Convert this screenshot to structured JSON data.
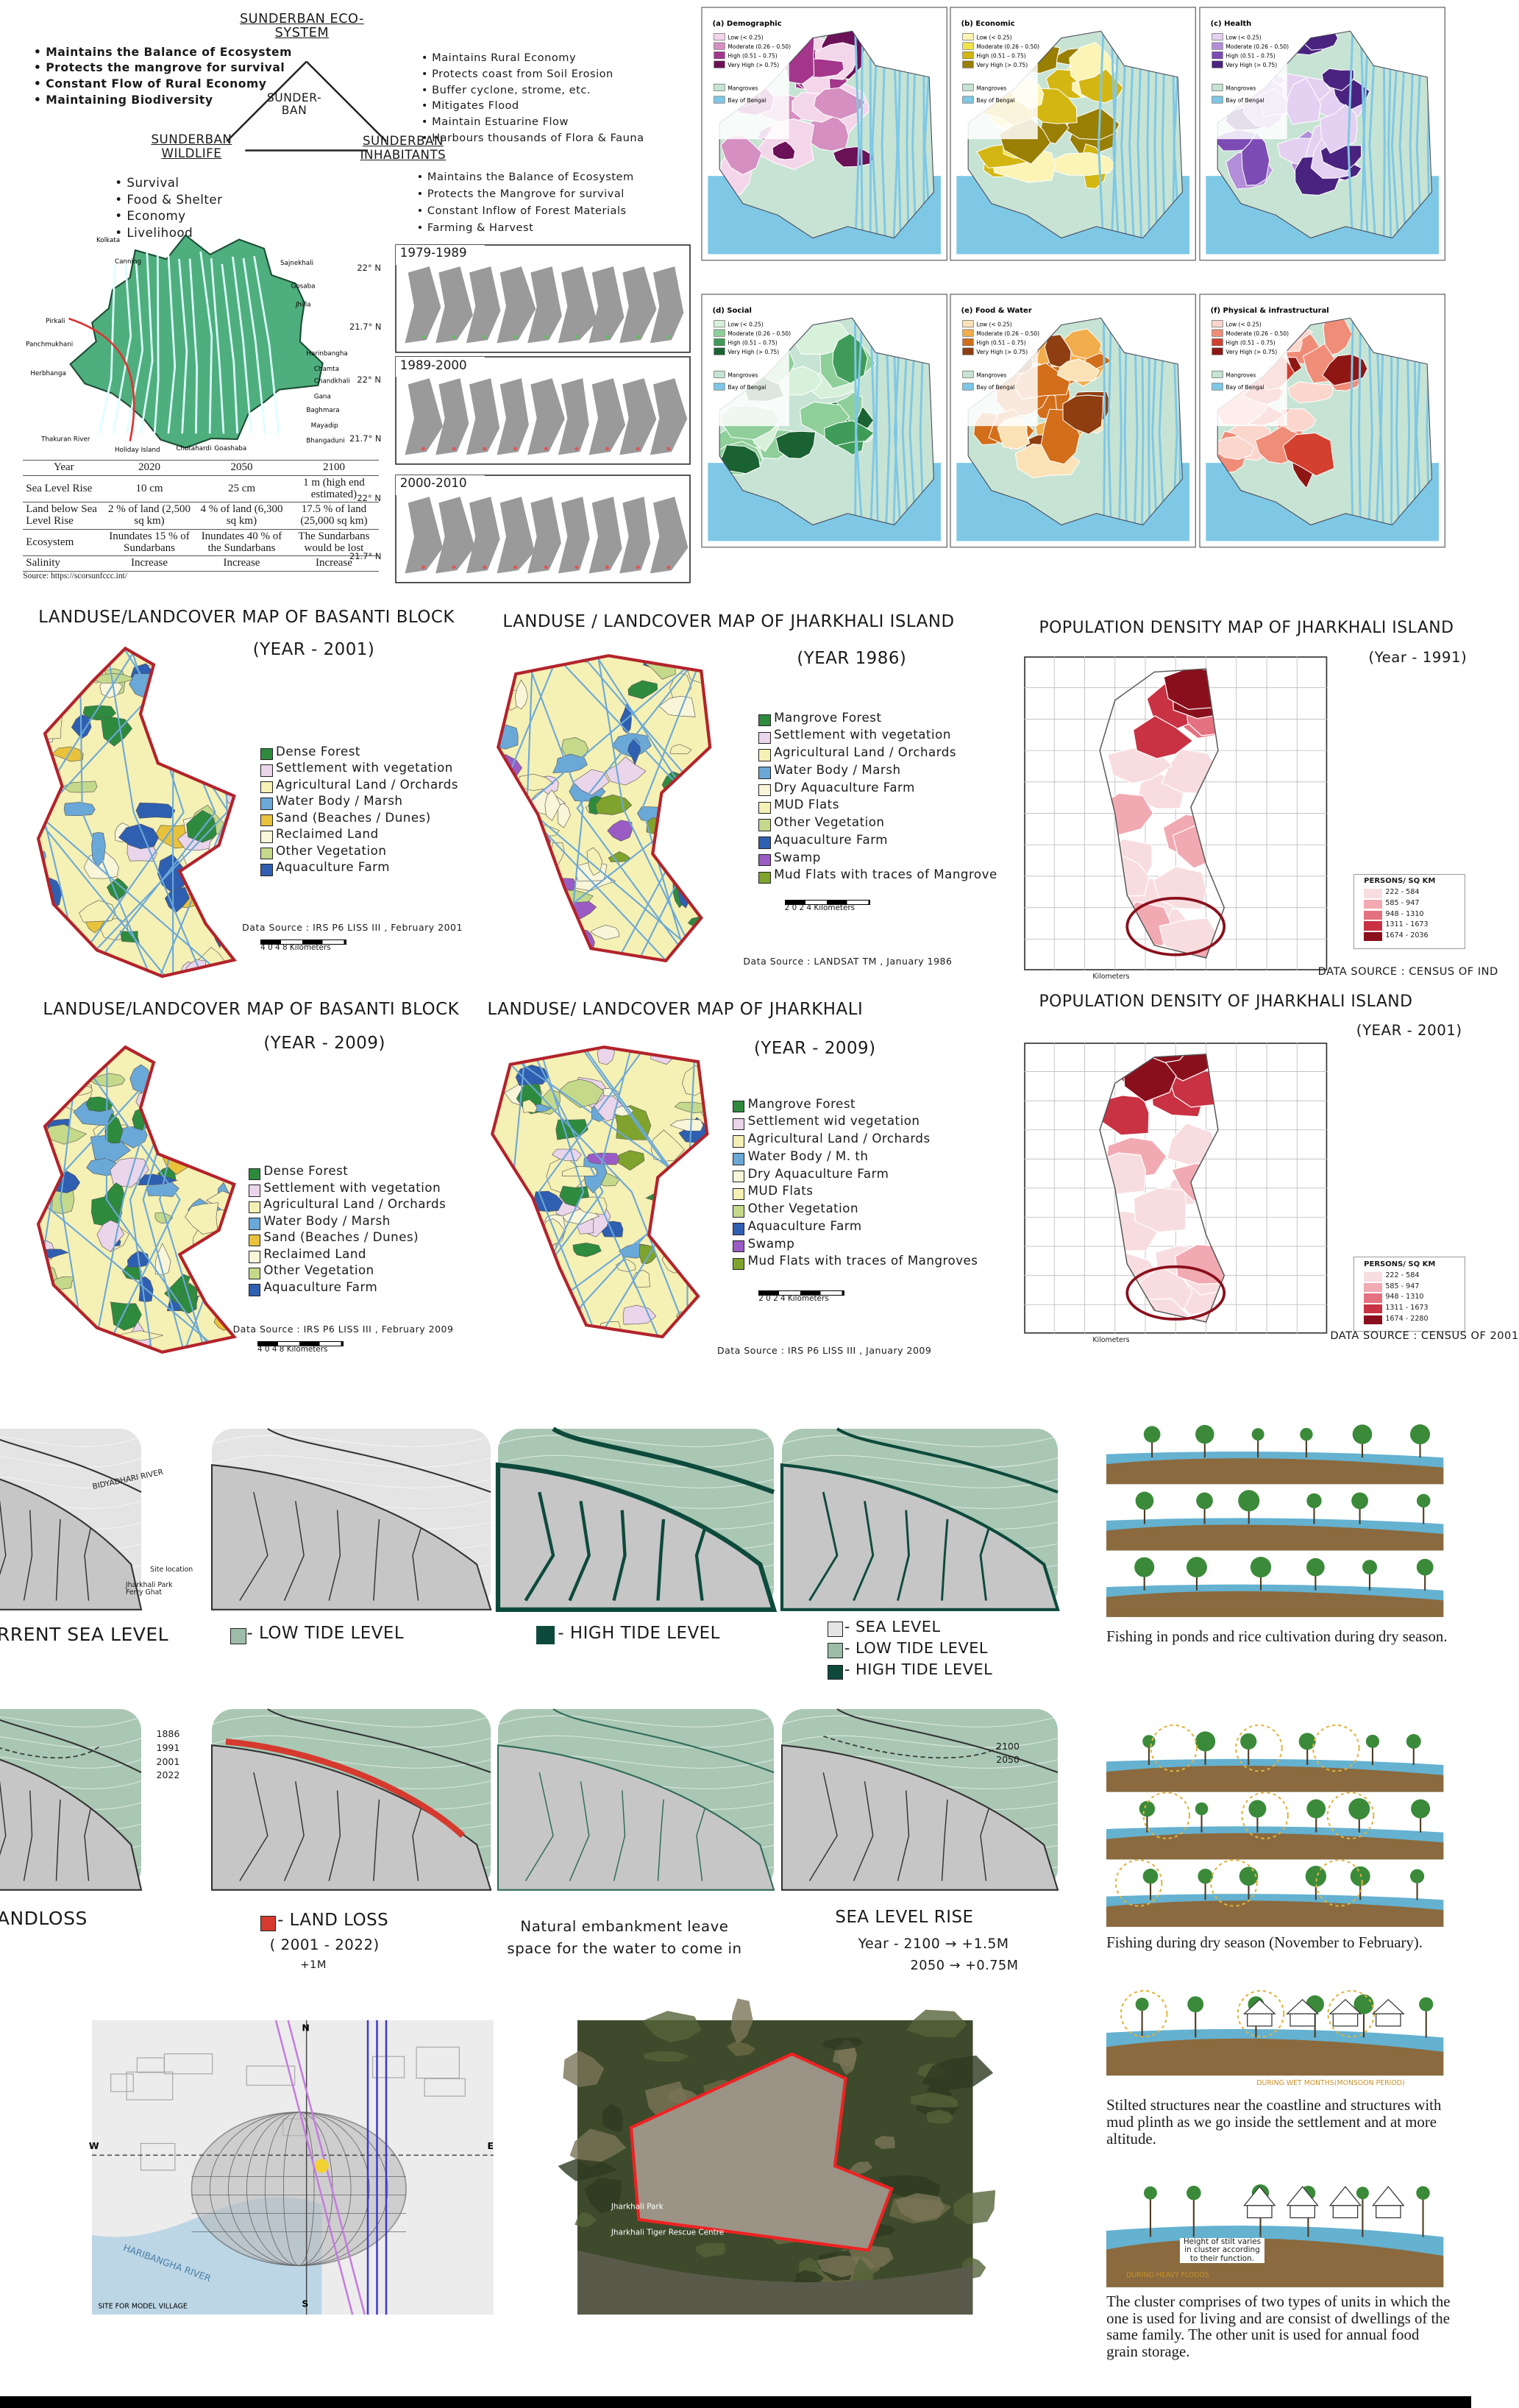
{
  "ecosystem": {
    "title": "SUNDERBAN ECO-SYSTEM",
    "center": "SUNDER-BAN",
    "left_title": "SUNDERBAN WILDLIFE",
    "right_title": "SUNDERBAN INHABITANTS",
    "top_left": [
      "• Maintains the Balance of Ecosystem",
      "• Protects the mangrove for survival",
      "• Constant Flow of Rural Economy",
      "• Maintaining Biodiversity"
    ],
    "top_right": [
      "• Maintains Rural Economy",
      "• Protects coast from Soil Erosion",
      "• Buffer cyclone, strome, etc.",
      "• Mitigates Flood",
      "• Maintain Estuarine Flow",
      "• Harbours thousands of Flora & Fauna"
    ],
    "wildlife": [
      "• Survival",
      "• Food & Shelter",
      "• Economy",
      "• Livelihood"
    ],
    "inhabitants": [
      "• Maintains the Balance of Ecosystem",
      "• Protects the Mangrove for survival",
      "• Constant Inflow of Forest Materials",
      "• Farming & Harvest"
    ]
  },
  "location_map": {
    "labels": [
      "Kolkata",
      "Canning",
      "Sajnekhali",
      "Gosaba",
      "Jhilla",
      "Pirkali",
      "Panchmukhani",
      "Herbhanga",
      "Harinbangha",
      "Chamta",
      "Chandkhali",
      "Gana",
      "Baghmara",
      "Mayadip",
      "Bhangaduni",
      "Thakuran River",
      "Holiday Island",
      "Chotahardi",
      "Goashaba"
    ]
  },
  "sea_level_table": {
    "header": [
      "Year",
      "2020",
      "2050",
      "2100"
    ],
    "rows": [
      [
        "Sea Level Rise",
        "10 cm",
        "25 cm",
        "1 m (high end estimated)"
      ],
      [
        "Land below Sea Level Rise",
        "2 % of land (2,500 sq km)",
        "4 % of land (6,300 sq km)",
        "17.5 % of land (25,000 sq km)"
      ],
      [
        "Ecosystem",
        "Inundates 15 % of Sundarbans",
        "Inundates 40 % of the Sundarbans",
        "The Sundarbans would be lost"
      ],
      [
        "Salinity",
        "Increase",
        "Increase",
        "Increase"
      ]
    ],
    "source": "Source: https://scorsunfccc.int/"
  },
  "shoreline": {
    "periods": [
      "1979-1989",
      "1989-2000",
      "2000-2010"
    ],
    "lat_labels": [
      "22° N",
      "21.7° N"
    ]
  },
  "vulnerability": {
    "panels": [
      "(a) Demographic",
      "(b) Economic",
      "(c) Health",
      "(d) Social",
      "(e) Food & Water",
      "(f) Physical & infrastructural"
    ],
    "legend": [
      "Low (< 0.25)",
      "Moderate (0.26 – 0.50)",
      "High (0.51 – 0.75)",
      "Very High (> 0.75)"
    ],
    "mangroves": "Mangroves",
    "bay": "Bay of Bengal"
  },
  "landuse_maps": [
    {
      "title": "LANDUSE/LANDCOVER MAP OF BASANTI BLOCK",
      "year": "(YEAR - 2001)",
      "legend": [
        "Dense Forest",
        "Settlement with vegetation",
        "Agricultural Land / Orchards",
        "Water Body / Marsh",
        "Sand (Beaches / Dunes)",
        "Reclaimed Land",
        "Other Vegetation",
        "Aquaculture Farm"
      ],
      "source": "Data Source : IRS P6 LISS III , February 2001",
      "scale": "4    0    4    8  Kilometers"
    },
    {
      "title": "LANDUSE / LANDCOVER MAP OF JHARKHALI ISLAND",
      "year": "(YEAR 1986)",
      "legend": [
        "Mangrove Forest",
        "Settlement with vegetation",
        "Agricultural Land / Orchards",
        "Water Body / Marsh",
        "Dry Aquaculture Farm",
        "MUD Flats",
        "Other Vegetation",
        "Aquaculture Farm",
        "Swamp",
        "Mud Flats with traces of Mangrove"
      ],
      "source": "Data Source : LANDSAT TM , January 1986",
      "scale": "2    0    2    4  Kilometers"
    },
    {
      "title": "LANDUSE/LANDCOVER MAP OF BASANTI BLOCK",
      "year": "(YEAR - 2009)",
      "legend": [
        "Dense Forest",
        "Settlement with vegetation",
        "Agricultural Land / Orchards",
        "Water Body / Marsh",
        "Sand (Beaches / Dunes)",
        "Reclaimed Land",
        "Other Vegetation",
        "Aquaculture Farm"
      ],
      "source": "Data Source : IRS P6 LISS III , February 2009",
      "scale": "4    0    4    8  Kilometers"
    },
    {
      "title": "LANDUSE/ LANDCOVER MAP OF JHARKHALI",
      "year": "(YEAR - 2009)",
      "legend": [
        "Mangrove Forest",
        "Settlement wid vegetation",
        "Agricultural Land / Orchards",
        "Water Body / M. th",
        "Dry Aquaculture Farm",
        "MUD Flats",
        "Other Vegetation",
        "Aquaculture Farm",
        "Swamp",
        "Mud Flats with traces of Mangroves"
      ],
      "source": "Data Source : IRS P6 LISS III , January 2009",
      "scale": "2    0    2    4  Kilometers"
    }
  ],
  "density_maps": [
    {
      "title": "POPULATION DENSITY MAP OF JHARKHALI ISLAND",
      "year": "(Year - 1991)",
      "legend_title": "PERSONS/ SQ KM",
      "classes": [
        "222 - 584",
        "585 - 947",
        "948 - 1310",
        "1311 - 1673",
        "1674 - 2036"
      ],
      "source": "DATA SOURCE : CENSUS OF IND",
      "scale": "Kilometers"
    },
    {
      "title": "POPULATION DENSITY OF JHARKHALI ISLAND",
      "year": "(YEAR - 2001)",
      "legend_title": "PERSONS/ SQ KM",
      "classes": [
        "222 - 584",
        "585 - 947",
        "948 - 1310",
        "1311 - 1673",
        "1674 - 2280"
      ],
      "source": "DATA SOURCE : CENSUS OF 2001",
      "scale": "Kilometers"
    }
  ],
  "tide_study": {
    "river": "BIDYADHARI RIVER",
    "site": "Site location",
    "ferry": "Jharkhali Park Ferry Ghat",
    "labels": [
      "RRENT SEA LEVEL",
      "- LOW TIDE LEVEL",
      "- HIGH TIDE LEVEL"
    ],
    "combined_legend": [
      "- SEA LEVEL",
      "- LOW TIDE LEVEL",
      "- HIGH TIDE LEVEL"
    ]
  },
  "land_loss": {
    "years": [
      "1886",
      "1991",
      "2001",
      "2022"
    ],
    "label_left": "ANDLOSS",
    "loss_title": "- LAND LOSS",
    "loss_period": "( 2001 - 2022)",
    "loss_rise": "+1M",
    "embankment": "Natural embankment leave space for the water to come in",
    "rise_title": "SEA LEVEL RISE",
    "rise_lines": [
      "Year - 2100 → +1.5M",
      "2050 → +0.75M"
    ],
    "rise_map_labels": [
      "2100",
      "2050"
    ]
  },
  "sun_path": {
    "directions": [
      "W",
      "E",
      "N",
      "S"
    ],
    "river": "HARIBANGHA RIVER",
    "caption": "SITE FOR MODEL VILLAGE"
  },
  "satellite": {
    "labels": [
      "Jharkhali Park",
      "Jharkhali Tiger Rescue Centre"
    ]
  },
  "sections": {
    "captions": [
      "Fishing in ponds and rice cultivation during dry season.",
      "Fishing during dry season (November to February).",
      "Stilted structures near the coastline and structures with mud plinth as we go inside the settlement and at more altitude.",
      "The cluster comprises of two types of units in which the one is used for living and are consist of dwellings of the same family. The other unit is used for annual food grain storage."
    ],
    "wet_months": "DURING WET MONTHS(MONSOON PERIOD)",
    "floods": "DURING HEAVY FLOODS",
    "stilt_note": "Height of stilt varies in cluster according to their function."
  }
}
